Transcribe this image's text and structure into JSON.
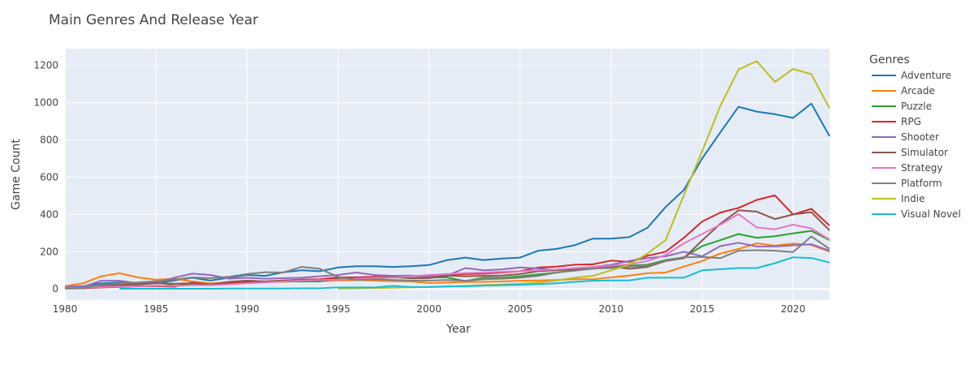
{
  "chart_data": {
    "type": "line",
    "title": "Main Genres And Release Year",
    "xlabel": "Year",
    "ylabel": "Game Count",
    "xlim": [
      1980,
      2022
    ],
    "ylim": [
      -60,
      1290
    ],
    "x_ticks": [
      1980,
      1985,
      1990,
      1995,
      2000,
      2005,
      2010,
      2015,
      2020
    ],
    "y_ticks": [
      0,
      200,
      400,
      600,
      800,
      1000,
      1200
    ],
    "grid": true,
    "legend_title": "Genres",
    "legend_position": "right",
    "series": [
      {
        "name": "Adventure",
        "color": "#1f77b4",
        "x": [
          1980,
          1981,
          1982,
          1983,
          1984,
          1985,
          1986,
          1987,
          1988,
          1989,
          1990,
          1991,
          1992,
          1993,
          1994,
          1995,
          1996,
          1997,
          1998,
          1999,
          2000,
          2001,
          2002,
          2003,
          2004,
          2005,
          2006,
          2007,
          2008,
          2009,
          2010,
          2011,
          2012,
          2013,
          2014,
          2015,
          2016,
          2017,
          2018,
          2019,
          2020,
          2021,
          2022
        ],
        "values": [
          10,
          15,
          30,
          35,
          25,
          30,
          45,
          60,
          45,
          60,
          75,
          70,
          90,
          100,
          95,
          115,
          122,
          122,
          118,
          122,
          128,
          155,
          168,
          155,
          163,
          168,
          205,
          215,
          235,
          270,
          270,
          278,
          328,
          440,
          532,
          700,
          840,
          978,
          952,
          938,
          918,
          995,
          820
        ]
      },
      {
        "name": "Arcade",
        "color": "#ff7f0e",
        "x": [
          1980,
          1981,
          1982,
          1983,
          1984,
          1985,
          1986,
          1987,
          1988,
          1989,
          1990,
          1991,
          1992,
          1993,
          1994,
          1995,
          1996,
          1997,
          1998,
          1999,
          2000,
          2001,
          2002,
          2003,
          2004,
          2005,
          2006,
          2007,
          2008,
          2009,
          2010,
          2011,
          2012,
          2013,
          2014,
          2015,
          2016,
          2017,
          2018,
          2019,
          2020,
          2021,
          2022
        ],
        "values": [
          15,
          30,
          68,
          84,
          62,
          50,
          55,
          40,
          30,
          35,
          35,
          40,
          38,
          42,
          42,
          46,
          48,
          44,
          42,
          40,
          32,
          34,
          38,
          38,
          40,
          44,
          46,
          48,
          52,
          52,
          62,
          72,
          84,
          88,
          120,
          150,
          190,
          215,
          245,
          232,
          244,
          236,
          200
        ]
      },
      {
        "name": "Puzzle",
        "color": "#2ca02c",
        "x": [
          1983,
          1984,
          1985,
          1986,
          1987,
          1988,
          1989,
          1990,
          1991,
          1992,
          1993,
          1994,
          1995,
          1996,
          1997,
          1998,
          1999,
          2000,
          2001,
          2002,
          2003,
          2004,
          2005,
          2006,
          2007,
          2008,
          2009,
          2010,
          2011,
          2012,
          2013,
          2014,
          2015,
          2016,
          2017,
          2018,
          2019,
          2020,
          2021,
          2022
        ],
        "values": [
          20,
          22,
          38,
          18,
          22,
          22,
          28,
          38,
          38,
          40,
          40,
          40,
          55,
          58,
          55,
          62,
          58,
          62,
          62,
          42,
          60,
          60,
          68,
          78,
          88,
          100,
          108,
          118,
          125,
          130,
          155,
          170,
          230,
          262,
          295,
          275,
          283,
          298,
          312,
          262
        ]
      },
      {
        "name": "RPG",
        "color": "#d62728",
        "x": [
          1980,
          1981,
          1982,
          1983,
          1984,
          1985,
          1986,
          1987,
          1988,
          1989,
          1990,
          1991,
          1992,
          1993,
          1994,
          1995,
          1996,
          1997,
          1998,
          1999,
          2000,
          2001,
          2002,
          2003,
          2004,
          2005,
          2006,
          2007,
          2008,
          2009,
          2010,
          2011,
          2012,
          2013,
          2014,
          2015,
          2016,
          2017,
          2018,
          2019,
          2020,
          2021,
          2022
        ],
        "values": [
          2,
          3,
          8,
          10,
          14,
          15,
          12,
          35,
          22,
          30,
          36,
          40,
          46,
          50,
          52,
          62,
          62,
          66,
          66,
          70,
          68,
          75,
          80,
          82,
          88,
          95,
          115,
          120,
          130,
          132,
          152,
          145,
          178,
          200,
          275,
          362,
          410,
          435,
          478,
          502,
          400,
          430,
          340
        ]
      },
      {
        "name": "Shooter",
        "color": "#9467bd",
        "x": [
          1980,
          1981,
          1982,
          1983,
          1984,
          1985,
          1986,
          1987,
          1988,
          1989,
          1990,
          1991,
          1992,
          1993,
          1994,
          1995,
          1996,
          1997,
          1998,
          1999,
          2000,
          2001,
          2002,
          2003,
          2004,
          2005,
          2006,
          2007,
          2008,
          2009,
          2010,
          2011,
          2012,
          2013,
          2014,
          2015,
          2016,
          2017,
          2018,
          2019,
          2020,
          2021,
          2022
        ],
        "values": [
          8,
          12,
          44,
          44,
          30,
          32,
          60,
          82,
          75,
          55,
          60,
          55,
          58,
          60,
          68,
          75,
          88,
          75,
          70,
          72,
          65,
          72,
          112,
          100,
          105,
          115,
          110,
          102,
          108,
          118,
          130,
          150,
          165,
          175,
          200,
          175,
          230,
          248,
          228,
          228,
          234,
          240,
          205
        ]
      },
      {
        "name": "Simulator",
        "color": "#8c564b",
        "x": [
          1980,
          1981,
          1982,
          1983,
          1984,
          1985,
          1986,
          1987,
          1988,
          1989,
          1990,
          1991,
          1992,
          1993,
          1994,
          1995,
          1996,
          1997,
          1998,
          1999,
          2000,
          2001,
          2002,
          2003,
          2004,
          2005,
          2006,
          2007,
          2008,
          2009,
          2010,
          2011,
          2012,
          2013,
          2014,
          2015,
          2016,
          2017,
          2018,
          2019,
          2020,
          2021,
          2022
        ],
        "values": [
          3,
          3,
          18,
          22,
          25,
          30,
          28,
          30,
          24,
          38,
          45,
          40,
          45,
          50,
          48,
          52,
          52,
          60,
          65,
          58,
          58,
          72,
          68,
          70,
          72,
          80,
          95,
          100,
          105,
          112,
          120,
          108,
          118,
          150,
          165,
          260,
          350,
          422,
          415,
          375,
          400,
          412,
          315
        ]
      },
      {
        "name": "Strategy",
        "color": "#e377c2",
        "x": [
          1980,
          1981,
          1982,
          1983,
          1984,
          1985,
          1986,
          1987,
          1988,
          1989,
          1990,
          1991,
          1992,
          1993,
          1994,
          1995,
          1996,
          1997,
          1998,
          1999,
          2000,
          2001,
          2002,
          2003,
          2004,
          2005,
          2006,
          2007,
          2008,
          2009,
          2010,
          2011,
          2012,
          2013,
          2014,
          2015,
          2016,
          2017,
          2018,
          2019,
          2020,
          2021,
          2022
        ],
        "values": [
          5,
          6,
          10,
          12,
          15,
          18,
          16,
          20,
          20,
          25,
          30,
          35,
          40,
          45,
          48,
          50,
          55,
          60,
          60,
          68,
          75,
          80,
          85,
          88,
          92,
          95,
          100,
          104,
          112,
          118,
          125,
          132,
          150,
          182,
          245,
          295,
          345,
          402,
          330,
          320,
          345,
          325,
          265
        ]
      },
      {
        "name": "Platform",
        "color": "#7f7f7f",
        "x": [
          1980,
          1981,
          1982,
          1983,
          1984,
          1985,
          1986,
          1987,
          1988,
          1989,
          1990,
          1991,
          1992,
          1993,
          1994,
          1995,
          1996,
          1997,
          1998,
          1999,
          2000,
          2001,
          2002,
          2003,
          2004,
          2005,
          2006,
          2007,
          2008,
          2009,
          2010,
          2011,
          2012,
          2013,
          2014,
          2015,
          2016,
          2017,
          2018,
          2019,
          2020,
          2021,
          2022
        ],
        "values": [
          3,
          5,
          22,
          30,
          35,
          42,
          50,
          62,
          58,
          65,
          80,
          90,
          88,
          118,
          108,
          65,
          48,
          52,
          48,
          46,
          45,
          48,
          44,
          52,
          55,
          60,
          70,
          88,
          98,
          110,
          112,
          120,
          125,
          152,
          170,
          172,
          165,
          205,
          208,
          205,
          198,
          282,
          215
        ]
      },
      {
        "name": "Indie",
        "color": "#bcbd22",
        "x": [
          1995,
          1996,
          1997,
          1998,
          1999,
          2000,
          2001,
          2002,
          2003,
          2004,
          2005,
          2006,
          2007,
          2008,
          2009,
          2010,
          2011,
          2012,
          2013,
          2014,
          2015,
          2016,
          2017,
          2018,
          2019,
          2020,
          2021,
          2022
        ],
        "values": [
          2,
          3,
          5,
          6,
          8,
          10,
          12,
          16,
          20,
          24,
          28,
          35,
          45,
          60,
          70,
          100,
          130,
          190,
          262,
          505,
          738,
          982,
          1178,
          1223,
          1112,
          1181,
          1153,
          970
        ]
      },
      {
        "name": "Visual Novel",
        "color": "#17becf",
        "x": [
          1983,
          1984,
          1985,
          1986,
          1987,
          1988,
          1989,
          1990,
          1991,
          1992,
          1993,
          1994,
          1995,
          1996,
          1997,
          1998,
          1999,
          2000,
          2001,
          2002,
          2003,
          2004,
          2005,
          2006,
          2007,
          2008,
          2009,
          2010,
          2011,
          2012,
          2013,
          2014,
          2015,
          2016,
          2017,
          2018,
          2019,
          2020,
          2021,
          2022
        ],
        "values": [
          1,
          1,
          1,
          1,
          1,
          1,
          2,
          2,
          2,
          2,
          3,
          3,
          8,
          8,
          8,
          16,
          10,
          10,
          14,
          14,
          18,
          20,
          22,
          26,
          30,
          38,
          44,
          46,
          46,
          60,
          60,
          60,
          100,
          106,
          112,
          112,
          138,
          170,
          166,
          142
        ]
      }
    ]
  }
}
